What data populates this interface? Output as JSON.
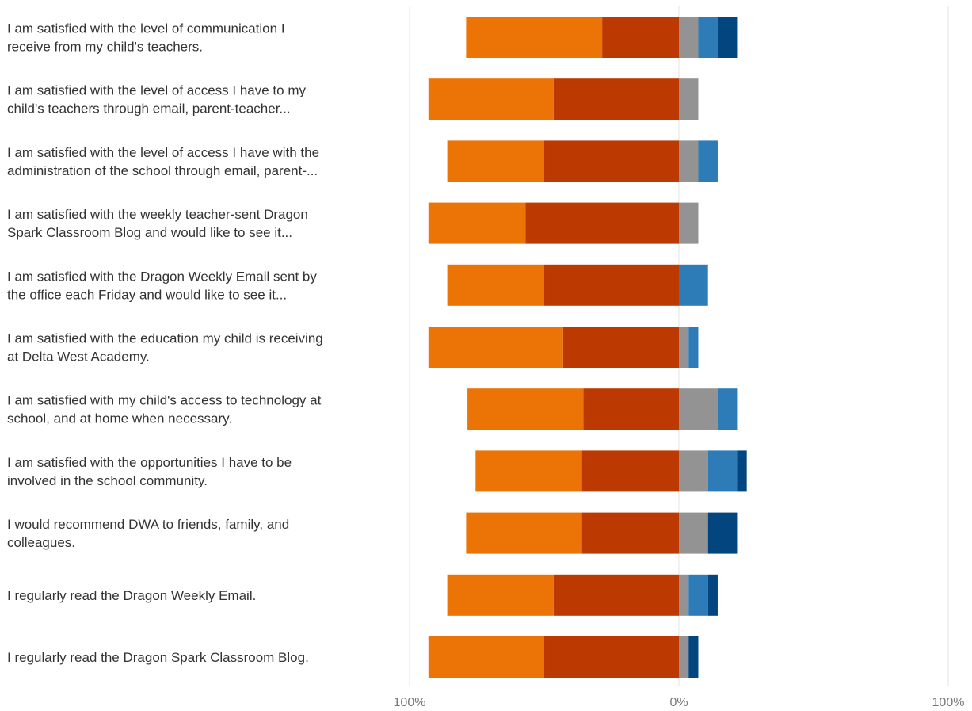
{
  "chart_data": {
    "type": "bar",
    "orientation": "horizontal",
    "stacking": "diverging",
    "xlim": [
      -100,
      100
    ],
    "x_tick_labels": [
      "100%",
      "0%",
      "100%"
    ],
    "categories": [
      [
        "I am satisfied with the level of communication I",
        "receive from my child's teachers."
      ],
      [
        "I am satisfied with the level of access I have to my",
        "child's teachers through email, parent-teacher..."
      ],
      [
        "I am satisfied with the level of access I have with the",
        "administration of the school through email, parent-..."
      ],
      [
        "I am satisfied with the weekly teacher-sent Dragon",
        "Spark Classroom Blog and would like to see it..."
      ],
      [
        "I am satisfied with the Dragon Weekly Email sent by",
        "the office each Friday and would like to see it..."
      ],
      [
        "I am satisfied with the education my child is receiving",
        "at Delta West Academy."
      ],
      [
        "I am satisfied with my child's access to technology at",
        "school, and at home when necessary."
      ],
      [
        "I am satisfied with the opportunities I have to be",
        "involved in the school community."
      ],
      [
        "I would recommend DWA to friends, family, and",
        "colleagues."
      ],
      [
        "I regularly read the Dragon Weekly Email."
      ],
      [
        "I regularly read the Dragon Spark Classroom Blog."
      ]
    ],
    "series": [
      {
        "color": "#BC3A02",
        "values": [
          -28.5,
          -46.5,
          -50,
          -57,
          -50,
          -43,
          -35.5,
          -36,
          -36,
          -46.5,
          -50
        ]
      },
      {
        "color": "#EC7306",
        "values": [
          -50.5,
          -46.5,
          -36,
          -36,
          -36,
          -50,
          -43,
          -39.5,
          -43,
          -39.5,
          -43
        ]
      },
      {
        "color": "#939393",
        "values": [
          7.2,
          7.2,
          7.2,
          7.2,
          0,
          3.6,
          14.4,
          10.8,
          10.8,
          3.6,
          3.6
        ]
      },
      {
        "color": "#2E7CB7",
        "values": [
          7.2,
          0,
          7.2,
          0,
          10.8,
          3.6,
          7.2,
          10.8,
          0,
          7.2,
          0
        ]
      },
      {
        "color": "#03467F",
        "values": [
          7.2,
          0,
          0,
          0,
          0,
          0,
          0,
          3.6,
          10.8,
          3.6,
          3.6
        ]
      }
    ]
  }
}
